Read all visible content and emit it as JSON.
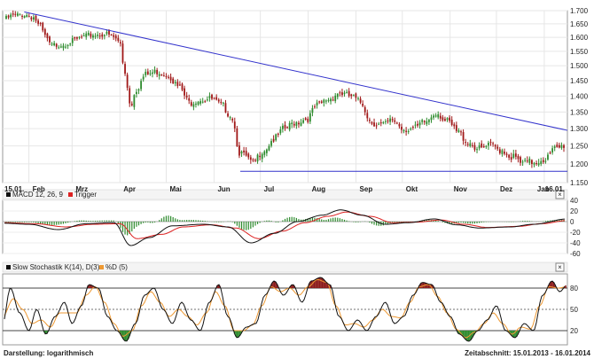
{
  "chart_data": [
    {
      "type": "candlestick",
      "scale": "log",
      "ylim": [
        1.15,
        1.7
      ],
      "yticks": [
        "1.700",
        "1.650",
        "1.600",
        "1.550",
        "1.500",
        "1.450",
        "1.400",
        "1.350",
        "1.300",
        "1.250",
        "1.200",
        "1.150"
      ],
      "xticks": [
        "15.01.",
        "Feb",
        "Mrz",
        "Apr",
        "Mai",
        "Jun",
        "Jul",
        "Aug",
        "Sep",
        "Okt",
        "Nov",
        "Dez",
        "Jan",
        "16.01."
      ],
      "grid": true,
      "colors": {
        "up": "#2e8b2e",
        "down": "#a01818",
        "trendline": "#3333cc",
        "support": "#3333cc"
      },
      "close_path": [
        [
          "2013-01-15",
          1.665
        ],
        [
          "2013-01-22",
          1.68
        ],
        [
          "2013-01-29",
          1.685
        ],
        [
          "2013-02-04",
          1.675
        ],
        [
          "2013-02-08",
          1.64
        ],
        [
          "2013-02-12",
          1.6
        ],
        [
          "2013-02-15",
          1.57
        ],
        [
          "2013-02-22",
          1.575
        ],
        [
          "2013-03-01",
          1.585
        ],
        [
          "2013-03-08",
          1.6
        ],
        [
          "2013-03-15",
          1.61
        ],
        [
          "2013-03-22",
          1.612
        ],
        [
          "2013-03-28",
          1.6
        ],
        [
          "2013-04-01",
          1.58
        ],
        [
          "2013-04-04",
          1.48
        ],
        [
          "2013-04-08",
          1.37
        ],
        [
          "2013-04-11",
          1.42
        ],
        [
          "2013-04-18",
          1.47
        ],
        [
          "2013-04-25",
          1.48
        ],
        [
          "2013-05-02",
          1.47
        ],
        [
          "2013-05-09",
          1.43
        ],
        [
          "2013-05-16",
          1.38
        ],
        [
          "2013-05-23",
          1.39
        ],
        [
          "2013-05-30",
          1.39
        ],
        [
          "2013-06-06",
          1.37
        ],
        [
          "2013-06-12",
          1.34
        ],
        [
          "2013-06-18",
          1.23
        ],
        [
          "2013-06-21",
          1.22
        ],
        [
          "2013-06-26",
          1.2
        ],
        [
          "2013-07-03",
          1.24
        ],
        [
          "2013-07-10",
          1.27
        ],
        [
          "2013-07-17",
          1.3
        ],
        [
          "2013-07-24",
          1.32
        ],
        [
          "2013-07-31",
          1.33
        ],
        [
          "2013-08-07",
          1.37
        ],
        [
          "2013-08-14",
          1.39
        ],
        [
          "2013-08-21",
          1.41
        ],
        [
          "2013-08-28",
          1.4
        ],
        [
          "2013-09-04",
          1.38
        ],
        [
          "2013-09-11",
          1.32
        ],
        [
          "2013-09-18",
          1.31
        ],
        [
          "2013-09-25",
          1.325
        ],
        [
          "2013-10-02",
          1.3
        ],
        [
          "2013-10-09",
          1.3
        ],
        [
          "2013-10-16",
          1.32
        ],
        [
          "2013-10-23",
          1.35
        ],
        [
          "2013-10-30",
          1.32
        ],
        [
          "2013-11-06",
          1.29
        ],
        [
          "2013-11-13",
          1.26
        ],
        [
          "2013-11-20",
          1.24
        ],
        [
          "2013-11-27",
          1.25
        ],
        [
          "2013-12-04",
          1.24
        ],
        [
          "2013-12-11",
          1.22
        ],
        [
          "2013-12-18",
          1.2
        ],
        [
          "2013-12-24",
          1.205
        ],
        [
          "2014-01-02",
          1.215
        ],
        [
          "2014-01-08",
          1.24
        ],
        [
          "2014-01-16",
          1.255
        ]
      ],
      "lines": [
        {
          "name": "trendline",
          "from": [
            "2013-01-29",
            1.695
          ],
          "to": [
            "2014-01-16",
            1.295
          ]
        },
        {
          "name": "support",
          "from": [
            "2013-06-18",
            1.18
          ],
          "to": [
            "2014-01-16",
            1.18
          ]
        }
      ]
    },
    {
      "type": "bar+line",
      "indicator": "MACD 12, 26, 9",
      "ylim": [
        -60,
        40
      ],
      "yticks": [
        "40",
        "20",
        "0",
        "-20",
        "-40",
        "-60"
      ],
      "series": [
        {
          "name": "MACD 12, 26, 9",
          "color": "#111111"
        },
        {
          "name": "Trigger",
          "color": "#dd2222"
        }
      ],
      "histogram_color": "#2e8b2e",
      "macd_path": [
        [
          "2013-01-15",
          -3
        ],
        [
          "2013-02-01",
          -5
        ],
        [
          "2013-02-20",
          -15
        ],
        [
          "2013-03-10",
          -4
        ],
        [
          "2013-03-28",
          -2
        ],
        [
          "2013-04-08",
          -45
        ],
        [
          "2013-04-20",
          -30
        ],
        [
          "2013-05-05",
          -8
        ],
        [
          "2013-05-25",
          -5
        ],
        [
          "2013-06-10",
          -10
        ],
        [
          "2013-06-25",
          -40
        ],
        [
          "2013-07-10",
          -22
        ],
        [
          "2013-07-25",
          0
        ],
        [
          "2013-08-10",
          12
        ],
        [
          "2013-08-22",
          22
        ],
        [
          "2013-09-05",
          12
        ],
        [
          "2013-09-20",
          -5
        ],
        [
          "2013-10-05",
          -2
        ],
        [
          "2013-10-22",
          5
        ],
        [
          "2013-11-05",
          -6
        ],
        [
          "2013-11-20",
          -12
        ],
        [
          "2013-12-10",
          -10
        ],
        [
          "2013-12-25",
          -5
        ],
        [
          "2014-01-16",
          5
        ]
      ],
      "trigger_path": [
        [
          "2013-01-15",
          -2
        ],
        [
          "2013-02-05",
          -4
        ],
        [
          "2013-02-25",
          -10
        ],
        [
          "2013-03-15",
          -5
        ],
        [
          "2013-04-01",
          -4
        ],
        [
          "2013-04-12",
          -32
        ],
        [
          "2013-04-28",
          -24
        ],
        [
          "2013-05-12",
          -10
        ],
        [
          "2013-05-30",
          -6
        ],
        [
          "2013-06-15",
          -12
        ],
        [
          "2013-06-30",
          -32
        ],
        [
          "2013-07-15",
          -18
        ],
        [
          "2013-07-30",
          -2
        ],
        [
          "2013-08-14",
          10
        ],
        [
          "2013-08-26",
          18
        ],
        [
          "2013-09-10",
          10
        ],
        [
          "2013-09-25",
          -2
        ],
        [
          "2013-10-10",
          -1
        ],
        [
          "2013-10-26",
          3
        ],
        [
          "2013-11-10",
          -5
        ],
        [
          "2013-11-25",
          -11
        ],
        [
          "2013-12-15",
          -9
        ],
        [
          "2013-12-30",
          -4
        ],
        [
          "2014-01-16",
          2
        ]
      ]
    },
    {
      "type": "line",
      "indicator": "Slow Stochastik K(14), D(3)",
      "ylim": [
        0,
        100
      ],
      "yticks": [
        "80",
        "50",
        "20"
      ],
      "levels": [
        80,
        50,
        20
      ],
      "series": [
        {
          "name": "Slow Stochastik K(14), D(3)",
          "color": "#111111"
        },
        {
          "name": "%D (5)",
          "color": "#ee9933"
        }
      ],
      "overbought_color": "#8b1a1a",
      "oversold_color": "#2e8b2e",
      "k_path": [
        [
          "2013-01-15",
          30
        ],
        [
          "2013-01-20",
          80
        ],
        [
          "2013-01-26",
          45
        ],
        [
          "2013-02-01",
          20
        ],
        [
          "2013-02-06",
          50
        ],
        [
          "2013-02-12",
          15
        ],
        [
          "2013-02-18",
          40
        ],
        [
          "2013-02-24",
          60
        ],
        [
          "2013-03-01",
          30
        ],
        [
          "2013-03-07",
          55
        ],
        [
          "2013-03-12",
          85
        ],
        [
          "2013-03-18",
          80
        ],
        [
          "2013-03-24",
          40
        ],
        [
          "2013-03-30",
          20
        ],
        [
          "2013-04-05",
          5
        ],
        [
          "2013-04-11",
          30
        ],
        [
          "2013-04-17",
          70
        ],
        [
          "2013-04-23",
          80
        ],
        [
          "2013-04-29",
          50
        ],
        [
          "2013-05-05",
          30
        ],
        [
          "2013-05-11",
          60
        ],
        [
          "2013-05-17",
          35
        ],
        [
          "2013-05-23",
          20
        ],
        [
          "2013-05-29",
          60
        ],
        [
          "2013-06-04",
          85
        ],
        [
          "2013-06-10",
          40
        ],
        [
          "2013-06-16",
          10
        ],
        [
          "2013-06-22",
          25
        ],
        [
          "2013-06-28",
          30
        ],
        [
          "2013-07-04",
          70
        ],
        [
          "2013-07-10",
          90
        ],
        [
          "2013-07-16",
          70
        ],
        [
          "2013-07-22",
          85
        ],
        [
          "2013-07-28",
          60
        ],
        [
          "2013-08-03",
          90
        ],
        [
          "2013-08-09",
          95
        ],
        [
          "2013-08-15",
          85
        ],
        [
          "2013-08-21",
          40
        ],
        [
          "2013-08-27",
          20
        ],
        [
          "2013-09-02",
          35
        ],
        [
          "2013-09-08",
          20
        ],
        [
          "2013-09-14",
          40
        ],
        [
          "2013-09-20",
          60
        ],
        [
          "2013-09-26",
          30
        ],
        [
          "2013-10-02",
          40
        ],
        [
          "2013-10-08",
          70
        ],
        [
          "2013-10-14",
          88
        ],
        [
          "2013-10-20",
          85
        ],
        [
          "2013-10-26",
          60
        ],
        [
          "2013-11-01",
          40
        ],
        [
          "2013-11-07",
          15
        ],
        [
          "2013-11-13",
          5
        ],
        [
          "2013-11-19",
          20
        ],
        [
          "2013-11-25",
          35
        ],
        [
          "2013-12-01",
          55
        ],
        [
          "2013-12-07",
          20
        ],
        [
          "2013-12-13",
          10
        ],
        [
          "2013-12-19",
          30
        ],
        [
          "2013-12-25",
          20
        ],
        [
          "2013-12-31",
          70
        ],
        [
          "2014-01-06",
          90
        ],
        [
          "2014-01-11",
          75
        ],
        [
          "2014-01-16",
          85
        ]
      ],
      "d_path": [
        [
          "2013-01-15",
          40
        ],
        [
          "2013-01-22",
          65
        ],
        [
          "2013-01-28",
          50
        ],
        [
          "2013-02-03",
          30
        ],
        [
          "2013-02-09",
          35
        ],
        [
          "2013-02-15",
          25
        ],
        [
          "2013-02-21",
          45
        ],
        [
          "2013-02-27",
          45
        ],
        [
          "2013-03-04",
          45
        ],
        [
          "2013-03-10",
          70
        ],
        [
          "2013-03-16",
          82
        ],
        [
          "2013-03-22",
          60
        ],
        [
          "2013-03-28",
          30
        ],
        [
          "2013-04-03",
          12
        ],
        [
          "2013-04-09",
          20
        ],
        [
          "2013-04-15",
          55
        ],
        [
          "2013-04-21",
          75
        ],
        [
          "2013-04-27",
          60
        ],
        [
          "2013-05-03",
          40
        ],
        [
          "2013-05-09",
          50
        ],
        [
          "2013-05-15",
          40
        ],
        [
          "2013-05-21",
          28
        ],
        [
          "2013-05-27",
          45
        ],
        [
          "2013-06-02",
          75
        ],
        [
          "2013-06-08",
          55
        ],
        [
          "2013-06-14",
          20
        ],
        [
          "2013-06-20",
          20
        ],
        [
          "2013-06-26",
          28
        ],
        [
          "2013-07-02",
          55
        ],
        [
          "2013-07-08",
          82
        ],
        [
          "2013-07-14",
          75
        ],
        [
          "2013-07-20",
          80
        ],
        [
          "2013-07-26",
          70
        ],
        [
          "2013-08-01",
          82
        ],
        [
          "2013-08-07",
          92
        ],
        [
          "2013-08-13",
          88
        ],
        [
          "2013-08-19",
          55
        ],
        [
          "2013-08-25",
          28
        ],
        [
          "2013-08-31",
          30
        ],
        [
          "2013-09-06",
          25
        ],
        [
          "2013-09-12",
          35
        ],
        [
          "2013-09-18",
          50
        ],
        [
          "2013-09-24",
          40
        ],
        [
          "2013-09-30",
          38
        ],
        [
          "2013-10-06",
          60
        ],
        [
          "2013-10-12",
          82
        ],
        [
          "2013-10-18",
          85
        ],
        [
          "2013-10-24",
          68
        ],
        [
          "2013-10-30",
          45
        ],
        [
          "2013-11-05",
          22
        ],
        [
          "2013-11-11",
          10
        ],
        [
          "2013-11-17",
          18
        ],
        [
          "2013-11-23",
          30
        ],
        [
          "2013-11-29",
          45
        ],
        [
          "2013-12-05",
          30
        ],
        [
          "2013-12-11",
          15
        ],
        [
          "2013-12-17",
          25
        ],
        [
          "2013-12-23",
          22
        ],
        [
          "2013-12-29",
          55
        ],
        [
          "2014-01-04",
          82
        ],
        [
          "2014-01-10",
          80
        ],
        [
          "2014-01-16",
          82
        ]
      ]
    }
  ],
  "footer": {
    "left": "Darstellung: logarithmisch",
    "right": "Zeitabschnitt: 15.01.2013 - 16.01.2014"
  }
}
